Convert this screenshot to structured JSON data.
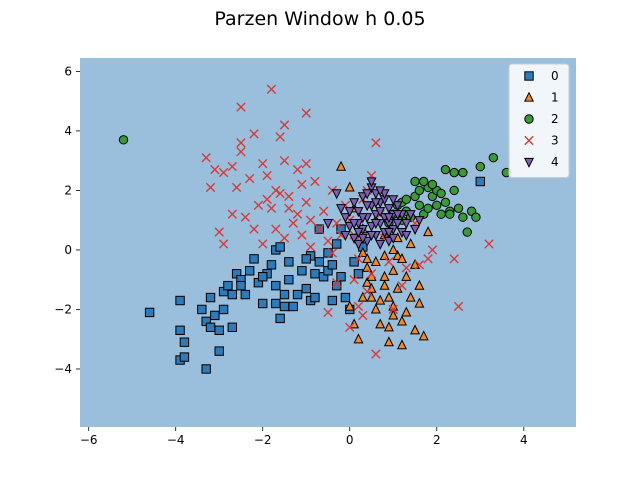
{
  "chart_data": {
    "type": "scatter",
    "title": "Parzen Window h 0.05",
    "xlabel": "",
    "ylabel": "",
    "xlim": [
      -6.2,
      5.2
    ],
    "ylim": [
      -5.95,
      6.45
    ],
    "xticks": [
      -6,
      -4,
      -2,
      0,
      2,
      4
    ],
    "yticks": [
      -4,
      -2,
      0,
      2,
      4,
      6
    ],
    "xtick_labels": [
      "−6",
      "−4",
      "−2",
      "0",
      "2",
      "4"
    ],
    "ytick_labels": [
      "−4",
      "−2",
      "0",
      "2",
      "4",
      "6"
    ],
    "grid": false,
    "background_region_color": "#99bfdc",
    "legend_placement": "top-right",
    "series": [
      {
        "name": "0",
        "marker": "square",
        "color": "#2f7ab8",
        "points": [
          [
            -4.6,
            -2.1
          ],
          [
            -3.9,
            -1.7
          ],
          [
            -3.9,
            -2.7
          ],
          [
            -3.8,
            -3.1
          ],
          [
            -3.9,
            -3.7
          ],
          [
            -3.8,
            -3.6
          ],
          [
            -3.4,
            -2.0
          ],
          [
            -3.3,
            -2.4
          ],
          [
            -3.2,
            -2.6
          ],
          [
            -3.3,
            -4.0
          ],
          [
            -3.0,
            -3.4
          ],
          [
            -3.2,
            -1.6
          ],
          [
            -3.0,
            -2.7
          ],
          [
            -2.9,
            -2.0
          ],
          [
            -2.9,
            -1.4
          ],
          [
            -2.8,
            -1.2
          ],
          [
            -2.7,
            -2.6
          ],
          [
            -2.7,
            -1.5
          ],
          [
            -2.6,
            -0.8
          ],
          [
            -2.5,
            -1.0
          ],
          [
            -2.4,
            -1.5
          ],
          [
            -2.3,
            -0.7
          ],
          [
            -2.2,
            -0.3
          ],
          [
            -2.1,
            -1.1
          ],
          [
            -2.0,
            -1.8
          ],
          [
            -1.9,
            -0.8
          ],
          [
            -1.8,
            -0.5
          ],
          [
            -1.7,
            -1.2
          ],
          [
            -1.7,
            0.0
          ],
          [
            -1.6,
            0.1
          ],
          [
            -1.5,
            -1.5
          ],
          [
            -1.6,
            -2.3
          ],
          [
            -1.4,
            -1.0
          ],
          [
            -1.4,
            -0.4
          ],
          [
            -1.3,
            -1.9
          ],
          [
            -1.2,
            -1.5
          ],
          [
            -1.1,
            -0.7
          ],
          [
            -1.0,
            -1.3
          ],
          [
            -0.9,
            -0.2
          ],
          [
            -0.9,
            -1.7
          ],
          [
            -0.8,
            -0.8
          ],
          [
            -0.7,
            -0.4
          ],
          [
            -0.6,
            -0.9
          ],
          [
            -0.5,
            -0.1
          ],
          [
            -0.5,
            -0.7
          ],
          [
            -0.4,
            -0.5
          ],
          [
            -0.3,
            0.2
          ],
          [
            -0.3,
            -1.2
          ],
          [
            -0.2,
            -0.9
          ],
          [
            -0.2,
            0.7
          ],
          [
            -0.1,
            -1.6
          ],
          [
            0.0,
            -2.0
          ],
          [
            0.1,
            -0.4
          ],
          [
            0.2,
            -0.8
          ],
          [
            0.3,
            0.1
          ],
          [
            -0.7,
            0.7
          ],
          [
            -0.8,
            -1.6
          ],
          [
            -1.5,
            -1.9
          ],
          [
            3.0,
            2.3
          ],
          [
            -2.5,
            -1.2
          ],
          [
            -2.0,
            -0.9
          ],
          [
            -1.0,
            -0.3
          ],
          [
            -0.4,
            -1.7
          ],
          [
            -1.7,
            -1.8
          ],
          [
            -3.1,
            -2.2
          ]
        ]
      },
      {
        "name": "1",
        "marker": "triangle-up",
        "color": "#f08a2c",
        "points": [
          [
            -0.2,
            2.8
          ],
          [
            0.0,
            2.1
          ],
          [
            0.1,
            1.4
          ],
          [
            0.2,
            0.4
          ],
          [
            0.3,
            -0.1
          ],
          [
            0.4,
            -0.6
          ],
          [
            0.4,
            -1.1
          ],
          [
            0.5,
            -1.6
          ],
          [
            0.6,
            -2.0
          ],
          [
            0.6,
            -0.4
          ],
          [
            0.7,
            -2.5
          ],
          [
            0.8,
            -1.2
          ],
          [
            0.8,
            -0.2
          ],
          [
            0.9,
            -1.6
          ],
          [
            0.9,
            -3.1
          ],
          [
            1.0,
            -0.7
          ],
          [
            1.0,
            -2.2
          ],
          [
            1.1,
            -1.3
          ],
          [
            1.1,
            -0.2
          ],
          [
            1.2,
            -2.4
          ],
          [
            1.2,
            -3.2
          ],
          [
            1.3,
            -0.9
          ],
          [
            1.4,
            -1.6
          ],
          [
            1.4,
            0.2
          ],
          [
            1.5,
            -2.7
          ],
          [
            1.5,
            -0.5
          ],
          [
            1.6,
            -1.2
          ],
          [
            1.7,
            -2.9
          ],
          [
            1.8,
            0.6
          ],
          [
            0.0,
            -1.9
          ],
          [
            0.1,
            -2.5
          ],
          [
            0.2,
            -3.0
          ],
          [
            0.3,
            0.7
          ],
          [
            0.5,
            -0.9
          ],
          [
            0.6,
            1.0
          ],
          [
            0.7,
            -1.7
          ],
          [
            0.8,
            -0.9
          ],
          [
            0.9,
            -2.6
          ],
          [
            1.0,
            -1.9
          ],
          [
            1.1,
            0.4
          ],
          [
            1.2,
            -0.3
          ],
          [
            1.3,
            -2.1
          ],
          [
            0.4,
            -0.3
          ],
          [
            0.5,
            -1.3
          ],
          [
            1.6,
            -1.8
          ],
          [
            1.0,
            0.0
          ],
          [
            0.8,
            0.5
          ],
          [
            0.3,
            -1.6
          ]
        ]
      },
      {
        "name": "2",
        "marker": "circle",
        "color": "#3a9a3a",
        "points": [
          [
            -5.2,
            3.7
          ],
          [
            0.9,
            0.9
          ],
          [
            1.0,
            1.2
          ],
          [
            1.1,
            1.5
          ],
          [
            1.2,
            1.6
          ],
          [
            1.3,
            1.3
          ],
          [
            1.4,
            1.1
          ],
          [
            1.5,
            2.3
          ],
          [
            1.5,
            1.8
          ],
          [
            1.6,
            1.5
          ],
          [
            1.7,
            1.2
          ],
          [
            1.8,
            2.1
          ],
          [
            1.9,
            1.8
          ],
          [
            2.0,
            1.5
          ],
          [
            2.0,
            2.0
          ],
          [
            2.1,
            1.2
          ],
          [
            2.2,
            2.7
          ],
          [
            2.2,
            1.6
          ],
          [
            2.3,
            1.3
          ],
          [
            2.4,
            2.0
          ],
          [
            2.5,
            1.4
          ],
          [
            2.6,
            2.6
          ],
          [
            2.7,
            0.6
          ],
          [
            2.8,
            1.3
          ],
          [
            2.9,
            1.1
          ],
          [
            3.0,
            2.8
          ],
          [
            3.3,
            3.1
          ],
          [
            3.6,
            2.6
          ],
          [
            1.7,
            2.3
          ],
          [
            1.3,
            1.7
          ],
          [
            1.6,
            2.0
          ],
          [
            2.1,
            1.9
          ],
          [
            2.4,
            2.6
          ],
          [
            1.8,
            1.4
          ],
          [
            2.3,
            1.2
          ],
          [
            1.9,
            2.2
          ],
          [
            2.6,
            1.1
          ],
          [
            1.2,
            1.0
          ]
        ]
      },
      {
        "name": "3",
        "marker": "x",
        "color": "#d63a3a",
        "points": [
          [
            -2.5,
            4.8
          ],
          [
            -1.8,
            5.4
          ],
          [
            -1.0,
            4.6
          ],
          [
            -1.5,
            4.2
          ],
          [
            -2.5,
            3.6
          ],
          [
            -2.2,
            3.9
          ],
          [
            -1.6,
            3.8
          ],
          [
            -2.5,
            3.3
          ],
          [
            -3.3,
            3.1
          ],
          [
            -3.1,
            2.7
          ],
          [
            -2.9,
            2.6
          ],
          [
            -2.7,
            2.8
          ],
          [
            -3.2,
            2.1
          ],
          [
            -2.6,
            2.1
          ],
          [
            -2.0,
            2.9
          ],
          [
            -1.9,
            2.5
          ],
          [
            -1.5,
            3.0
          ],
          [
            -1.2,
            2.7
          ],
          [
            -1.0,
            2.9
          ],
          [
            -0.8,
            2.3
          ],
          [
            -1.9,
            1.7
          ],
          [
            -1.8,
            1.4
          ],
          [
            -1.6,
            1.9
          ],
          [
            -1.4,
            1.4
          ],
          [
            -1.2,
            1.2
          ],
          [
            -1.0,
            1.6
          ],
          [
            -0.9,
            1.0
          ],
          [
            -3.0,
            0.6
          ],
          [
            -2.9,
            0.2
          ],
          [
            -2.7,
            1.2
          ],
          [
            -2.4,
            1.1
          ],
          [
            -2.2,
            0.7
          ],
          [
            -2.0,
            0.2
          ],
          [
            -1.7,
            0.7
          ],
          [
            -1.5,
            0.4
          ],
          [
            -1.3,
            0.9
          ],
          [
            -1.1,
            0.5
          ],
          [
            -0.9,
            0.1
          ],
          [
            -0.7,
            0.7
          ],
          [
            -0.5,
            0.3
          ],
          [
            -0.4,
            -0.1
          ],
          [
            -0.3,
            0.9
          ],
          [
            -0.2,
            0.5
          ],
          [
            -0.1,
            1.5
          ],
          [
            0.0,
            1.0
          ],
          [
            0.1,
            0.5
          ],
          [
            0.1,
            -1.0
          ],
          [
            0.2,
            -1.9
          ],
          [
            0.3,
            -2.2
          ],
          [
            0.4,
            -1.4
          ],
          [
            0.5,
            2.5
          ],
          [
            0.5,
            -0.8
          ],
          [
            0.6,
            3.6
          ],
          [
            0.6,
            -3.5
          ],
          [
            0.7,
            1.2
          ],
          [
            0.8,
            0.4
          ],
          [
            0.9,
            -0.4
          ],
          [
            1.0,
            -2.0
          ],
          [
            1.2,
            -1.2
          ],
          [
            1.3,
            -0.6
          ],
          [
            1.5,
            0.9
          ],
          [
            1.6,
            -0.5
          ],
          [
            1.8,
            -0.3
          ],
          [
            1.9,
            0.0
          ],
          [
            2.4,
            -0.3
          ],
          [
            2.5,
            -1.9
          ],
          [
            3.2,
            0.2
          ],
          [
            0.0,
            -2.6
          ],
          [
            0.2,
            -0.3
          ],
          [
            -0.3,
            -1.1
          ],
          [
            -0.5,
            -2.1
          ],
          [
            -0.6,
            1.3
          ],
          [
            0.3,
            1.7
          ],
          [
            -1.7,
            2.0
          ],
          [
            -2.1,
            1.5
          ],
          [
            -1.4,
            1.8
          ],
          [
            -1.1,
            2.2
          ],
          [
            -0.4,
            2.0
          ],
          [
            -2.3,
            2.4
          ],
          [
            0.4,
            2.0
          ]
        ]
      },
      {
        "name": "4",
        "marker": "triangle-down",
        "color": "#7b5fb0",
        "points": [
          [
            -0.3,
            1.9
          ],
          [
            -0.2,
            1.4
          ],
          [
            -0.1,
            1.1
          ],
          [
            0.0,
            0.8
          ],
          [
            0.1,
            0.4
          ],
          [
            0.2,
            1.3
          ],
          [
            0.2,
            0.2
          ],
          [
            0.3,
            1.8
          ],
          [
            0.3,
            0.7
          ],
          [
            0.4,
            1.1
          ],
          [
            0.4,
            0.3
          ],
          [
            0.5,
            2.1
          ],
          [
            0.5,
            1.5
          ],
          [
            0.5,
            0.8
          ],
          [
            0.6,
            1.9
          ],
          [
            0.6,
            1.2
          ],
          [
            0.6,
            0.5
          ],
          [
            0.7,
            1.6
          ],
          [
            0.7,
            0.9
          ],
          [
            0.7,
            0.2
          ],
          [
            0.8,
            1.7
          ],
          [
            0.8,
            1.1
          ],
          [
            0.8,
            0.6
          ],
          [
            0.9,
            1.4
          ],
          [
            0.9,
            0.9
          ],
          [
            0.9,
            0.3
          ],
          [
            1.0,
            1.2
          ],
          [
            1.0,
            0.7
          ],
          [
            1.1,
            1.5
          ],
          [
            1.1,
            0.9
          ],
          [
            1.2,
            1.2
          ],
          [
            1.2,
            0.6
          ],
          [
            1.3,
            0.9
          ],
          [
            1.4,
            1.2
          ],
          [
            1.5,
            0.7
          ],
          [
            0.0,
            1.3
          ],
          [
            0.1,
            1.6
          ],
          [
            0.2,
            0.9
          ],
          [
            0.3,
            0.4
          ],
          [
            0.4,
            1.5
          ],
          [
            0.5,
            0.5
          ],
          [
            0.6,
            0.9
          ],
          [
            0.7,
            1.3
          ],
          [
            0.8,
            1.9
          ],
          [
            0.9,
            1.1
          ],
          [
            1.0,
            0.4
          ],
          [
            1.1,
            1.2
          ],
          [
            1.3,
            0.5
          ],
          [
            -0.5,
            0.9
          ],
          [
            -0.1,
            0.5
          ],
          [
            0.5,
            2.3
          ],
          [
            0.4,
            1.9
          ],
          [
            0.2,
            0.6
          ],
          [
            1.6,
            1.0
          ],
          [
            0.6,
            1.6
          ],
          [
            0.3,
            1.1
          ],
          [
            0.9,
            0.6
          ],
          [
            1.0,
            1.7
          ],
          [
            0.7,
            2.0
          ],
          [
            0.1,
            0.9
          ]
        ]
      }
    ]
  }
}
